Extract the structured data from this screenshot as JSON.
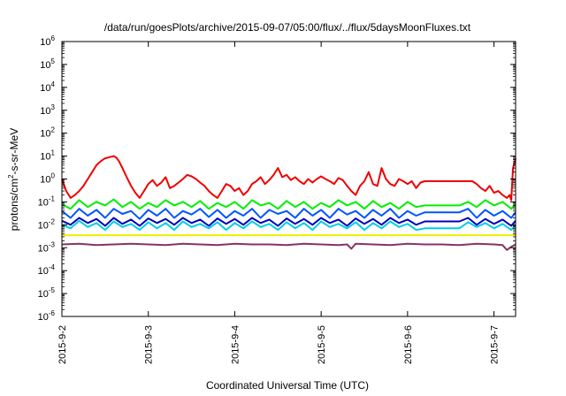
{
  "chart_data": {
    "type": "line",
    "title": "/data/run/goesPlots/archive/2015-09-07/05:00/flux/../flux/5daysMoonFluxes.txt",
    "xlabel": "Coordinated Universal Time (UTC)",
    "ylabel": "protons/cm²-s-sr-MeV",
    "ylabel_parts": {
      "pre": "protons/cm",
      "sup": "2",
      "post": "-s-sr-MeV"
    },
    "yscale": "log",
    "ylim": [
      1e-06,
      1000000.0
    ],
    "xlim": [
      0,
      5.25
    ],
    "x_unit": "days after 2015-9-2 00:00 UTC",
    "x_ticks": [
      {
        "x": 0,
        "label": "2015-9-2"
      },
      {
        "x": 1,
        "label": "2015-9-3"
      },
      {
        "x": 2,
        "label": "2015-9-4"
      },
      {
        "x": 3,
        "label": "2015-9-5"
      },
      {
        "x": 4,
        "label": "2015-9-6"
      },
      {
        "x": 5,
        "label": "2015-9-7"
      }
    ],
    "y_ticks": [
      {
        "exp": 6,
        "base": "10",
        "sup": "6"
      },
      {
        "exp": 5,
        "base": "10",
        "sup": "5"
      },
      {
        "exp": 4,
        "base": "10",
        "sup": "4"
      },
      {
        "exp": 3,
        "base": "10",
        "sup": "3"
      },
      {
        "exp": 2,
        "base": "10",
        "sup": "2"
      },
      {
        "exp": 1,
        "base": "10",
        "sup": "1"
      },
      {
        "exp": 0,
        "base": "10",
        "sup": "0"
      },
      {
        "exp": -1,
        "base": "10",
        "sup": "-1"
      },
      {
        "exp": -2,
        "base": "10",
        "sup": "-2"
      },
      {
        "exp": -3,
        "base": "10",
        "sup": "-3"
      },
      {
        "exp": -4,
        "base": "10",
        "sup": "-4"
      },
      {
        "exp": -5,
        "base": "10",
        "sup": "-5"
      },
      {
        "exp": -6,
        "base": "10",
        "sup": "-6"
      }
    ],
    "series": [
      {
        "color": "#ee0000",
        "x": [
          0,
          0.05,
          0.1,
          0.15,
          0.2,
          0.25,
          0.3,
          0.35,
          0.4,
          0.45,
          0.5,
          0.55,
          0.6,
          0.63,
          0.66,
          0.7,
          0.75,
          0.8,
          0.85,
          0.9,
          0.95,
          1.0,
          1.05,
          1.1,
          1.15,
          1.2,
          1.25,
          1.3,
          1.35,
          1.4,
          1.45,
          1.5,
          1.55,
          1.6,
          1.65,
          1.7,
          1.75,
          1.8,
          1.85,
          1.9,
          1.95,
          2.0,
          2.05,
          2.1,
          2.15,
          2.2,
          2.25,
          2.3,
          2.35,
          2.4,
          2.45,
          2.5,
          2.55,
          2.6,
          2.65,
          2.7,
          2.75,
          2.8,
          2.85,
          2.9,
          2.95,
          3.0,
          3.05,
          3.1,
          3.15,
          3.2,
          3.25,
          3.3,
          3.35,
          3.4,
          3.45,
          3.5,
          3.55,
          3.6,
          3.65,
          3.7,
          3.75,
          3.8,
          3.85,
          3.9,
          3.95,
          4.0,
          4.05,
          4.1,
          4.15,
          4.2,
          4.3,
          4.4,
          4.5,
          4.6,
          4.65,
          4.7,
          4.75,
          4.8,
          4.85,
          4.9,
          4.95,
          5.0,
          5.05,
          5.1,
          5.15,
          5.18,
          5.2,
          5.22,
          5.25
        ],
        "values": [
          1.0,
          0.3,
          0.15,
          0.2,
          0.3,
          0.5,
          1.0,
          2.0,
          4.0,
          6.0,
          8.0,
          9.0,
          10.0,
          8.5,
          6.0,
          3.0,
          1.2,
          0.5,
          0.25,
          0.15,
          0.3,
          0.6,
          0.9,
          0.5,
          0.7,
          1.2,
          0.4,
          0.5,
          0.7,
          1.0,
          1.5,
          1.3,
          1.0,
          0.7,
          0.5,
          0.3,
          0.2,
          0.15,
          0.3,
          0.6,
          0.5,
          0.3,
          0.4,
          0.2,
          0.3,
          0.6,
          0.8,
          1.2,
          0.6,
          0.9,
          1.5,
          3.0,
          1.2,
          1.5,
          0.9,
          1.2,
          0.8,
          0.6,
          1.0,
          0.7,
          1.0,
          1.3,
          1.0,
          0.8,
          0.6,
          1.1,
          0.9,
          0.5,
          0.3,
          0.2,
          0.5,
          0.8,
          2.0,
          0.6,
          0.5,
          3.0,
          1.0,
          0.6,
          0.5,
          1.0,
          0.8,
          0.6,
          0.8,
          0.4,
          0.7,
          0.8,
          0.8,
          0.8,
          0.8,
          0.8,
          0.8,
          0.8,
          0.8,
          0.6,
          0.4,
          0.3,
          0.5,
          0.25,
          0.3,
          0.2,
          0.15,
          0.2,
          0.12,
          3.0,
          8.0
        ]
      },
      {
        "color": "#00ee00",
        "x": [
          0,
          0.1,
          0.2,
          0.3,
          0.4,
          0.5,
          0.6,
          0.7,
          0.8,
          0.9,
          1.0,
          1.1,
          1.2,
          1.3,
          1.4,
          1.5,
          1.6,
          1.7,
          1.8,
          1.9,
          2.0,
          2.1,
          2.2,
          2.3,
          2.4,
          2.5,
          2.6,
          2.7,
          2.8,
          2.9,
          3.0,
          3.1,
          3.2,
          3.3,
          3.4,
          3.5,
          3.6,
          3.7,
          3.8,
          3.9,
          4.0,
          4.1,
          4.2,
          4.4,
          4.6,
          4.7,
          4.8,
          4.9,
          5.0,
          5.1,
          5.2,
          5.25
        ],
        "values": [
          0.08,
          0.05,
          0.12,
          0.06,
          0.1,
          0.07,
          0.13,
          0.06,
          0.1,
          0.05,
          0.09,
          0.06,
          0.12,
          0.07,
          0.1,
          0.06,
          0.11,
          0.05,
          0.09,
          0.06,
          0.1,
          0.05,
          0.12,
          0.07,
          0.09,
          0.05,
          0.11,
          0.06,
          0.1,
          0.05,
          0.09,
          0.06,
          0.12,
          0.07,
          0.1,
          0.05,
          0.11,
          0.06,
          0.09,
          0.05,
          0.1,
          0.06,
          0.07,
          0.07,
          0.07,
          0.1,
          0.06,
          0.12,
          0.07,
          0.1,
          0.05,
          0.08
        ]
      },
      {
        "color": "#00ccee",
        "x": [
          0,
          0.1,
          0.2,
          0.3,
          0.4,
          0.5,
          0.6,
          0.7,
          0.8,
          0.9,
          1.0,
          1.1,
          1.2,
          1.3,
          1.4,
          1.5,
          1.6,
          1.7,
          1.8,
          1.9,
          2.0,
          2.1,
          2.2,
          2.3,
          2.4,
          2.5,
          2.6,
          2.7,
          2.8,
          2.9,
          3.0,
          3.1,
          3.2,
          3.3,
          3.4,
          3.5,
          3.6,
          3.7,
          3.8,
          3.9,
          4.0,
          4.1,
          4.2,
          4.4,
          4.6,
          4.7,
          4.8,
          4.9,
          5.0,
          5.1,
          5.2,
          5.25
        ],
        "values": [
          0.01,
          0.007,
          0.015,
          0.008,
          0.012,
          0.006,
          0.014,
          0.008,
          0.011,
          0.006,
          0.013,
          0.007,
          0.012,
          0.006,
          0.014,
          0.008,
          0.011,
          0.007,
          0.013,
          0.006,
          0.012,
          0.007,
          0.014,
          0.008,
          0.011,
          0.006,
          0.013,
          0.007,
          0.012,
          0.006,
          0.014,
          0.008,
          0.011,
          0.007,
          0.013,
          0.006,
          0.012,
          0.007,
          0.014,
          0.008,
          0.011,
          0.006,
          0.007,
          0.007,
          0.007,
          0.013,
          0.008,
          0.012,
          0.007,
          0.011,
          0.006,
          0.01
        ]
      },
      {
        "color": "#0055ff",
        "x": [
          0,
          0.1,
          0.2,
          0.3,
          0.4,
          0.5,
          0.6,
          0.7,
          0.8,
          0.9,
          1.0,
          1.1,
          1.2,
          1.3,
          1.4,
          1.5,
          1.6,
          1.7,
          1.8,
          1.9,
          2.0,
          2.1,
          2.2,
          2.3,
          2.4,
          2.5,
          2.6,
          2.7,
          2.8,
          2.9,
          3.0,
          3.1,
          3.2,
          3.3,
          3.4,
          3.5,
          3.6,
          3.7,
          3.8,
          3.9,
          4.0,
          4.1,
          4.2,
          4.4,
          4.6,
          4.7,
          4.8,
          4.9,
          5.0,
          5.1,
          5.2,
          5.25
        ],
        "values": [
          0.04,
          0.02,
          0.05,
          0.025,
          0.045,
          0.02,
          0.05,
          0.03,
          0.04,
          0.018,
          0.045,
          0.025,
          0.05,
          0.02,
          0.04,
          0.028,
          0.05,
          0.022,
          0.045,
          0.02,
          0.04,
          0.025,
          0.05,
          0.02,
          0.045,
          0.03,
          0.04,
          0.02,
          0.05,
          0.025,
          0.045,
          0.02,
          0.05,
          0.028,
          0.04,
          0.02,
          0.045,
          0.025,
          0.05,
          0.02,
          0.04,
          0.025,
          0.035,
          0.035,
          0.035,
          0.05,
          0.02,
          0.045,
          0.025,
          0.04,
          0.02,
          0.035
        ]
      },
      {
        "color": "#0000bb",
        "x": [
          0,
          0.1,
          0.2,
          0.3,
          0.4,
          0.5,
          0.6,
          0.7,
          0.8,
          0.9,
          1.0,
          1.1,
          1.2,
          1.3,
          1.4,
          1.5,
          1.6,
          1.7,
          1.8,
          1.9,
          2.0,
          2.1,
          2.2,
          2.3,
          2.4,
          2.5,
          2.6,
          2.7,
          2.8,
          2.9,
          3.0,
          3.1,
          3.2,
          3.3,
          3.4,
          3.5,
          3.6,
          3.7,
          3.8,
          3.9,
          4.0,
          4.1,
          4.2,
          4.4,
          4.6,
          4.7,
          4.8,
          4.9,
          5.0,
          5.1,
          5.2,
          5.25
        ],
        "values": [
          0.015,
          0.01,
          0.02,
          0.012,
          0.018,
          0.009,
          0.02,
          0.011,
          0.017,
          0.009,
          0.019,
          0.012,
          0.018,
          0.01,
          0.02,
          0.012,
          0.017,
          0.009,
          0.019,
          0.011,
          0.018,
          0.01,
          0.02,
          0.012,
          0.017,
          0.009,
          0.019,
          0.011,
          0.018,
          0.01,
          0.02,
          0.012,
          0.017,
          0.009,
          0.019,
          0.011,
          0.018,
          0.01,
          0.02,
          0.012,
          0.017,
          0.01,
          0.014,
          0.014,
          0.014,
          0.02,
          0.01,
          0.018,
          0.011,
          0.017,
          0.009,
          0.015
        ]
      },
      {
        "color": "#eeee00",
        "x": [
          0,
          5.25
        ],
        "values": [
          0.0035,
          0.0035
        ]
      },
      {
        "color": "#883366",
        "x": [
          0,
          0.2,
          0.4,
          0.6,
          0.8,
          1.0,
          1.2,
          1.4,
          1.6,
          1.8,
          2.0,
          2.2,
          2.4,
          2.6,
          2.8,
          3.0,
          3.2,
          3.3,
          3.35,
          3.4,
          3.6,
          3.8,
          4.0,
          4.2,
          4.4,
          4.6,
          4.8,
          5.0,
          5.1,
          5.15,
          5.2,
          5.25
        ],
        "values": [
          0.0014,
          0.0015,
          0.0013,
          0.0014,
          0.0015,
          0.0014,
          0.0013,
          0.0015,
          0.0014,
          0.0013,
          0.0015,
          0.0014,
          0.0014,
          0.0013,
          0.0015,
          0.0014,
          0.0013,
          0.0014,
          0.0009,
          0.0015,
          0.0014,
          0.0013,
          0.0015,
          0.0014,
          0.0014,
          0.0013,
          0.0015,
          0.0014,
          0.0013,
          0.0008,
          0.0011,
          0.0014
        ]
      }
    ]
  }
}
